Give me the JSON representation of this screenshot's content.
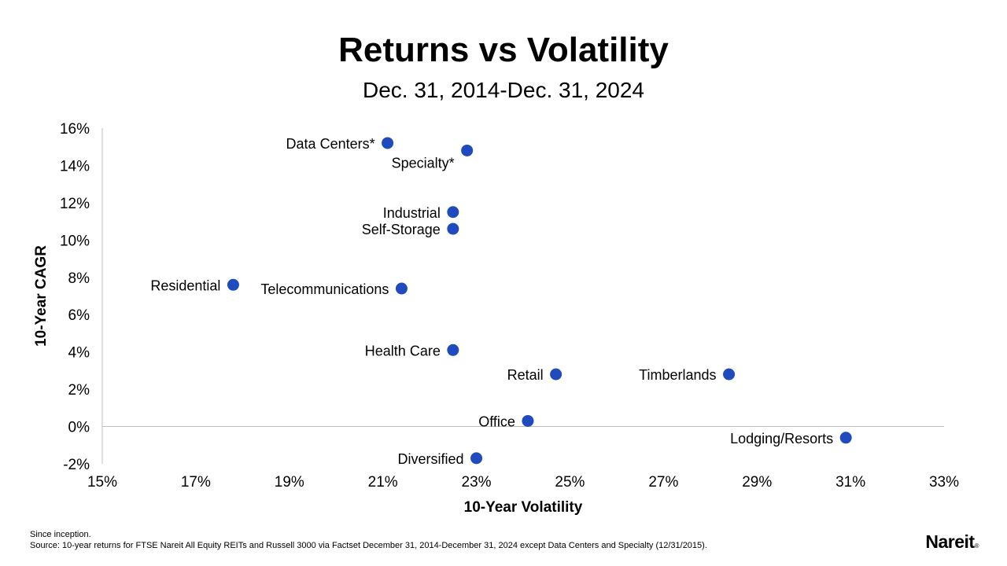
{
  "footnotes": {
    "line1": "Since inception.",
    "line2": "Source: 10-year returns for FTSE Nareit All Equity REITs and Russell 3000 via Factset December 31, 2014-December 31, 2024 except Data Centers and Specialty (12/31/2015)."
  },
  "logo": {
    "text": "Nareit",
    "mark": "®"
  },
  "chart_data": {
    "type": "scatter",
    "title": "Returns vs Volatility",
    "subtitle": "Dec. 31, 2014-Dec. 31, 2024",
    "xlabel": "10-Year Volatility",
    "ylabel": "10-Year CAGR",
    "xlim": [
      15,
      33
    ],
    "ylim": [
      -2,
      16
    ],
    "xticks": [
      15,
      17,
      19,
      21,
      23,
      25,
      27,
      29,
      31,
      33
    ],
    "yticks": [
      -2,
      0,
      2,
      4,
      6,
      8,
      10,
      12,
      14,
      16
    ],
    "tick_suffix": "%",
    "grid": false,
    "point_color": "#1f4bbf",
    "points": [
      {
        "label": "Data Centers*",
        "x": 21.1,
        "y": 15.2,
        "label_side": "left"
      },
      {
        "label": "Specialty*",
        "x": 22.8,
        "y": 14.8,
        "label_side": "below-left"
      },
      {
        "label": "Industrial",
        "x": 22.5,
        "y": 11.5,
        "label_side": "left"
      },
      {
        "label": "Self-Storage",
        "x": 22.5,
        "y": 10.6,
        "label_side": "left"
      },
      {
        "label": "Residential",
        "x": 17.8,
        "y": 7.6,
        "label_side": "left"
      },
      {
        "label": "Telecommunications",
        "x": 21.4,
        "y": 7.4,
        "label_side": "left"
      },
      {
        "label": "Health Care",
        "x": 22.5,
        "y": 4.1,
        "label_side": "left"
      },
      {
        "label": "Retail",
        "x": 24.7,
        "y": 2.8,
        "label_side": "left"
      },
      {
        "label": "Timberlands",
        "x": 28.4,
        "y": 2.8,
        "label_side": "left"
      },
      {
        "label": "Office",
        "x": 24.1,
        "y": 0.3,
        "label_side": "left"
      },
      {
        "label": "Lodging/Resorts",
        "x": 30.9,
        "y": -0.6,
        "label_side": "left"
      },
      {
        "label": "Diversified",
        "x": 23.0,
        "y": -1.7,
        "label_side": "left"
      }
    ]
  }
}
